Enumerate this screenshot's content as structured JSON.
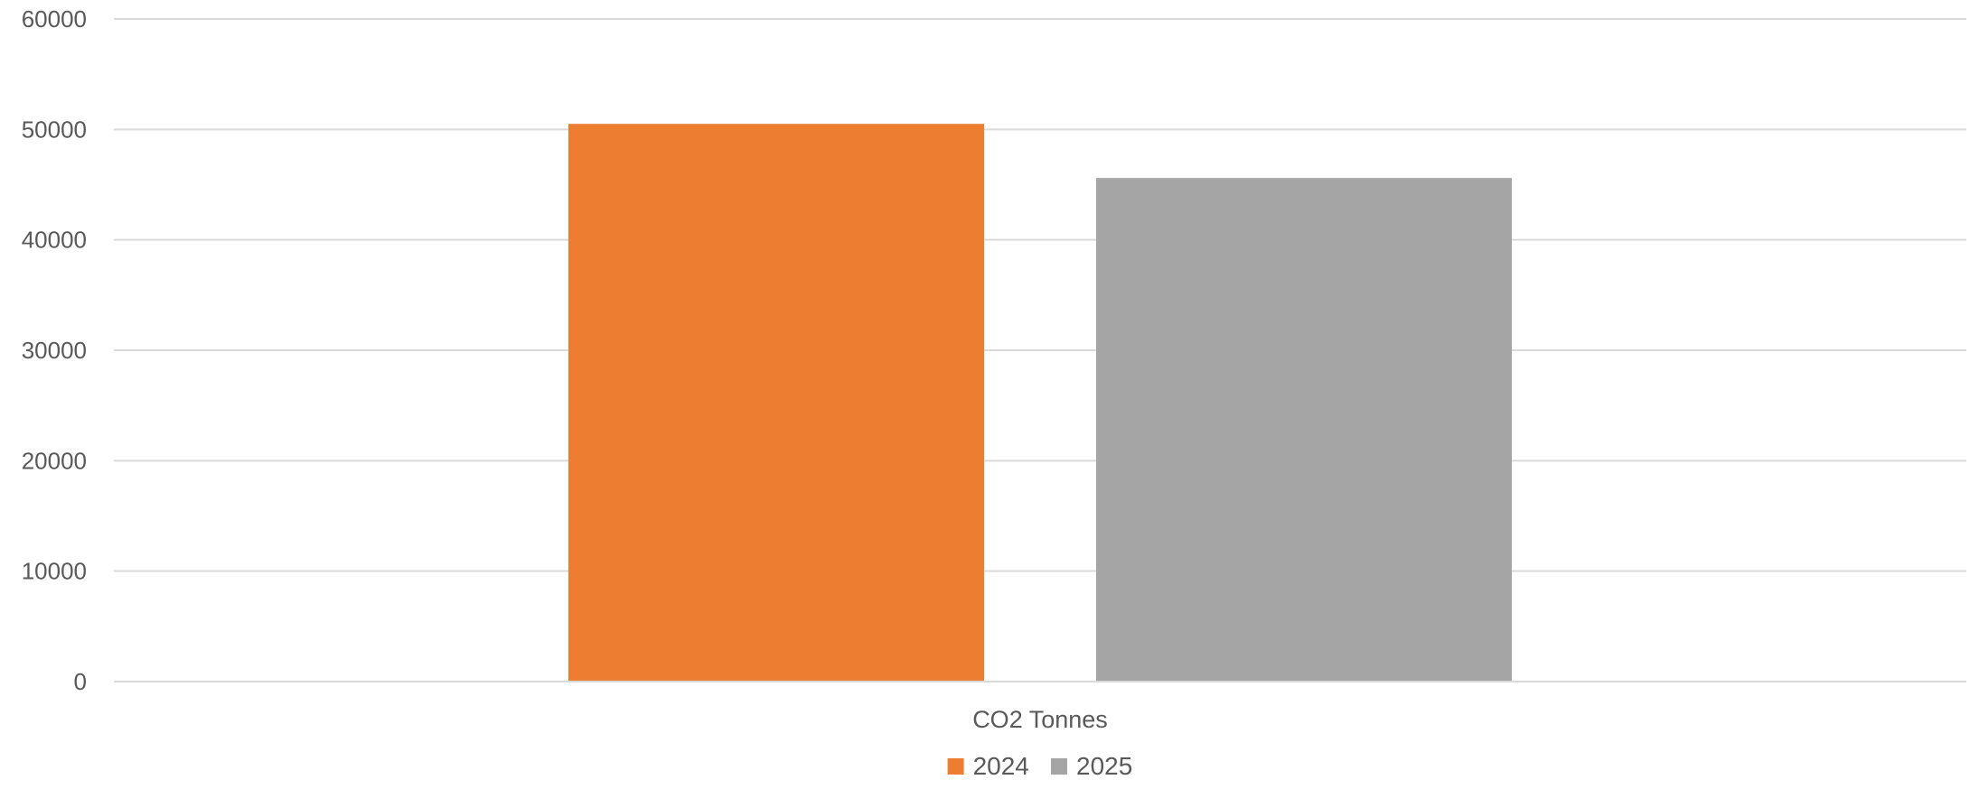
{
  "chart_data": {
    "type": "bar",
    "title": "",
    "xlabel": "",
    "ylabel": "",
    "categories": [
      "CO2 Tonnes"
    ],
    "series": [
      {
        "name": "2024",
        "values": [
          50500
        ],
        "color": "#ED7D31"
      },
      {
        "name": "2025",
        "values": [
          45600
        ],
        "color": "#A5A5A5"
      }
    ],
    "ylim": [
      0,
      60000
    ],
    "yticks": [
      "0",
      "10000",
      "20000",
      "30000",
      "40000",
      "50000",
      "60000"
    ],
    "grid": true,
    "legend_position": "bottom"
  }
}
